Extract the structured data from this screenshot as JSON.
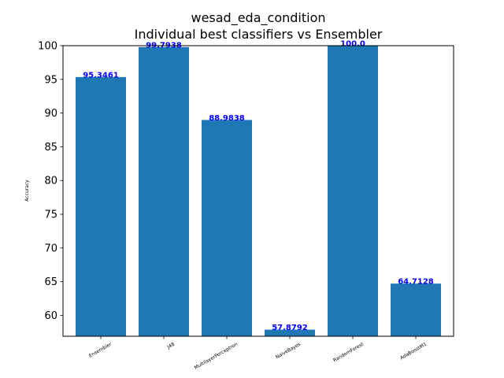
{
  "chart_data": {
    "type": "bar",
    "title": "wesad_eda_condition",
    "subtitle": "Individual best classifiers vs Ensembler",
    "xlabel": "",
    "ylabel": "Accuracy",
    "categories": [
      "Ensembler",
      "J48",
      "MultilayerPerceptron",
      "NaiveBayes",
      "RandomForest",
      "AdaBoostM1"
    ],
    "values": [
      95.3461,
      99.7938,
      88.9838,
      57.8792,
      100.0,
      64.7128
    ],
    "value_labels": [
      "95.3461",
      "99.7938",
      "88.9838",
      "57.8792",
      "100.0",
      "64.7128"
    ],
    "ylim": [
      56.9,
      100
    ],
    "yticks": [
      60,
      65,
      70,
      75,
      80,
      85,
      90,
      95,
      100
    ],
    "grid": false,
    "bar_color": "#1f77b4",
    "label_color": "#0000ff"
  }
}
